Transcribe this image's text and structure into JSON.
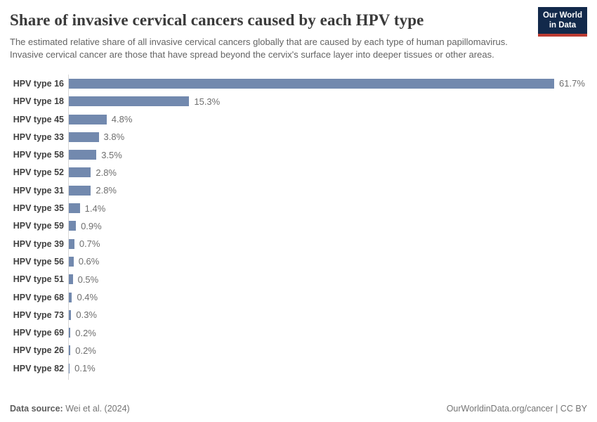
{
  "header": {
    "title": "Share of invasive cervical cancers caused by each HPV type",
    "subtitle": "The estimated relative share of all invasive cervical cancers globally that are caused by each type of human papillomavirus. Invasive cervical cancer are those that have spread beyond the cervix's surface layer into deeper tissues or other areas.",
    "logo": {
      "line1": "Our World",
      "line2": "in Data"
    }
  },
  "chart_data": {
    "type": "bar",
    "orientation": "horizontal",
    "title": "Share of invasive cervical cancers caused by each HPV type",
    "categories": [
      "HPV type 16",
      "HPV type 18",
      "HPV type 45",
      "HPV type 33",
      "HPV type 58",
      "HPV type 52",
      "HPV type 31",
      "HPV type 35",
      "HPV type 59",
      "HPV type 39",
      "HPV type 56",
      "HPV type 51",
      "HPV type 68",
      "HPV type 73",
      "HPV type 69",
      "HPV type 26",
      "HPV type 82"
    ],
    "values": [
      61.7,
      15.3,
      4.8,
      3.8,
      3.5,
      2.8,
      2.8,
      1.4,
      0.9,
      0.7,
      0.6,
      0.5,
      0.4,
      0.3,
      0.2,
      0.2,
      0.1
    ],
    "value_labels": [
      "61.7%",
      "15.3%",
      "4.8%",
      "3.8%",
      "3.5%",
      "2.8%",
      "2.8%",
      "1.4%",
      "0.9%",
      "0.7%",
      "0.6%",
      "0.5%",
      "0.4%",
      "0.3%",
      "0.2%",
      "0.2%",
      "0.1%"
    ],
    "unit": "%",
    "xlim": [
      0,
      61.7
    ],
    "grid": false,
    "legend": "none",
    "bar_color": "#7289ae",
    "axis_line_color": "#d8d8d8"
  },
  "footer": {
    "data_source_label": "Data source:",
    "data_source_value": " Wei et al. (2024)",
    "attribution": "OurWorldinData.org/cancer | CC BY"
  },
  "colors": {
    "logo_background": "#12294b",
    "logo_underline": "#bc3b32",
    "title_text": "#3a3a3a",
    "subtitle_text": "#636363",
    "bar": "#7289ae",
    "value_text": "#6f6f6f"
  }
}
